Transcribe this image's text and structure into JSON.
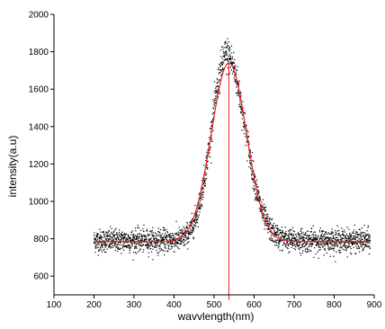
{
  "chart_data": {
    "type": "scatter",
    "title": "",
    "xlabel": "wavvlength(nm)",
    "ylabel": "intensity(a.u)",
    "xlim": [
      100,
      900
    ],
    "ylim": [
      500,
      2000
    ],
    "x_ticks": [
      "100",
      "200",
      "300",
      "400",
      "500",
      "600",
      "700",
      "800",
      "900"
    ],
    "y_ticks": [
      "600",
      "800",
      "1000",
      "1200",
      "1400",
      "1600",
      "1800",
      "2000"
    ],
    "grid": false,
    "legend": "none",
    "series": [
      {
        "kind": "scatter",
        "color": "#000000",
        "x_range": [
          200,
          890
        ],
        "baseline": 790,
        "peak_x": 532,
        "peak_y": 1780,
        "sigma_left": 38,
        "sigma_right": 46,
        "noise": 30
      },
      {
        "kind": "gaussian-fit",
        "color": "#e8202a",
        "x_range": [
          200,
          890
        ],
        "baseline": 785,
        "center": 537,
        "amplitude": 955,
        "sigma": 44
      }
    ],
    "annotations": [
      {
        "kind": "vertical-line",
        "x": 537,
        "color": "#e8202a"
      }
    ]
  }
}
